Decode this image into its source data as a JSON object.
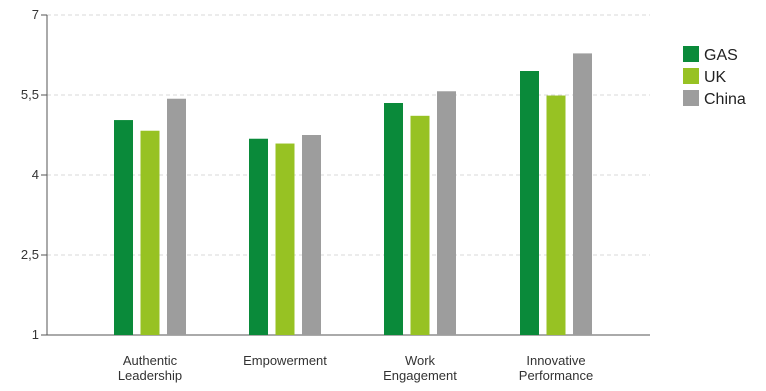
{
  "chart_data": {
    "type": "bar",
    "categories": [
      [
        "Authentic",
        "Leadership"
      ],
      [
        "Empowerment"
      ],
      [
        "Work",
        "Engagement"
      ],
      [
        "Innovative",
        "Performance"
      ]
    ],
    "series": [
      {
        "name": "GAS",
        "color": "#0a8a3a",
        "values": [
          5.03,
          4.68,
          5.35,
          5.95
        ]
      },
      {
        "name": "UK",
        "color": "#97c223",
        "values": [
          4.83,
          4.59,
          5.11,
          5.49
        ]
      },
      {
        "name": "China",
        "color": "#9d9d9d",
        "values": [
          5.43,
          4.75,
          5.57,
          6.28
        ]
      }
    ],
    "yticks": [
      "1",
      "2,5",
      "4",
      "5,5",
      "7"
    ],
    "ytick_values": [
      1,
      2.5,
      4,
      5.5,
      7
    ],
    "ylim": [
      1,
      7
    ],
    "title": "",
    "xlabel": "",
    "ylabel": "",
    "grid": true,
    "legend_position": "top-right"
  }
}
